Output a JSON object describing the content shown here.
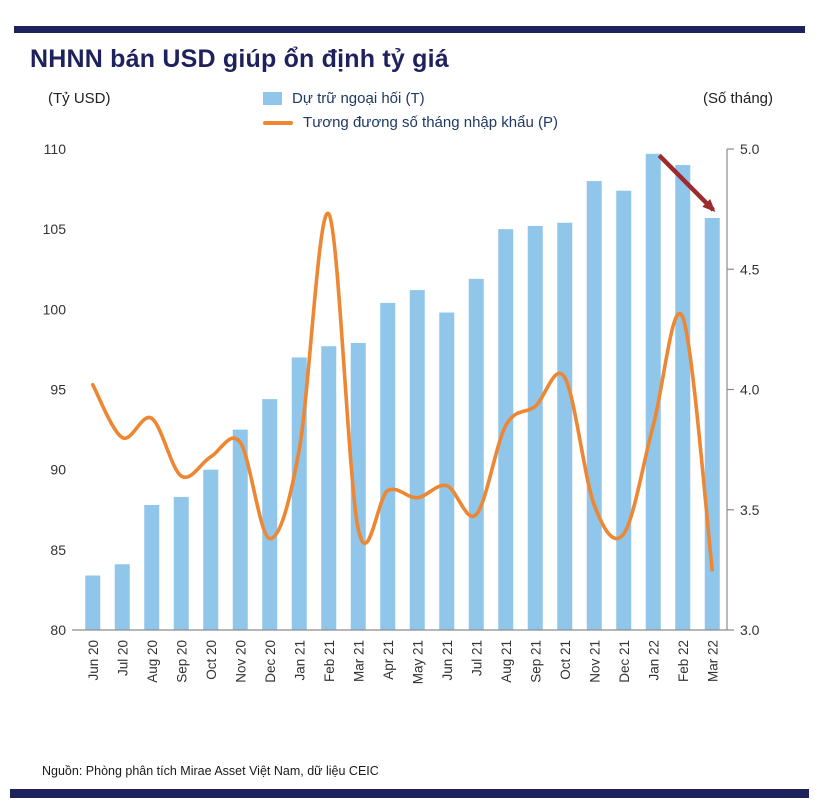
{
  "colors": {
    "navy": "#1f215c",
    "bar_blue": "#8fc6e9",
    "line_orange": "#ed8733",
    "arrow_red": "#9b2b2e",
    "axis_gray": "#8c8c8c",
    "tick_text": "#333333"
  },
  "page": {
    "title": "NHNN bán USD giúp ổn định tỷ giá",
    "source": "Nguồn: Phòng phân tích Mirae Asset Việt Nam, dữ liệu CEIC"
  },
  "chart_data": {
    "type": "bar",
    "subtype": "bar+line dual axis",
    "title": "NHNN bán USD giúp ổn định tỷ giá",
    "left_axis_label": "(Tỷ USD)",
    "right_axis_label": "(Số tháng)",
    "left_ylim": [
      80,
      110
    ],
    "left_yticks": [
      80,
      85,
      90,
      95,
      100,
      105,
      110
    ],
    "right_ylim": [
      3.0,
      5.0
    ],
    "right_yticks": [
      3.0,
      3.5,
      4.0,
      4.5,
      5.0
    ],
    "grid": false,
    "legend_position": "top",
    "categories": [
      "Jun 20",
      "Jul 20",
      "Aug 20",
      "Sep 20",
      "Oct 20",
      "Nov 20",
      "Dec 20",
      "Jan 21",
      "Feb 21",
      "Mar 21",
      "Apr 21",
      "May 21",
      "Jun 21",
      "Jul 21",
      "Aug 21",
      "Sep 21",
      "Oct 21",
      "Nov 21",
      "Dec 21",
      "Jan 22",
      "Feb 22",
      "Mar 22"
    ],
    "series": [
      {
        "name": "Dự trữ ngoại hối (T)",
        "type": "bar",
        "axis": "left",
        "color": "#8fc6e9",
        "values": [
          83.4,
          84.1,
          87.8,
          88.3,
          90.0,
          92.5,
          94.4,
          97.0,
          97.7,
          97.9,
          100.4,
          101.2,
          99.8,
          101.9,
          105.0,
          105.2,
          105.4,
          108.0,
          107.4,
          109.7,
          109.0,
          105.7
        ]
      },
      {
        "name": "Tương đương số tháng nhập khẩu (P)",
        "type": "line",
        "axis": "right",
        "color": "#ed8733",
        "values": [
          4.02,
          3.8,
          3.88,
          3.64,
          3.72,
          3.78,
          3.38,
          3.75,
          4.73,
          3.42,
          3.58,
          3.55,
          3.6,
          3.48,
          3.85,
          3.93,
          4.05,
          3.52,
          3.4,
          3.85,
          4.3,
          3.25
        ]
      }
    ],
    "annotation_arrow": {
      "description": "downward trend arrow over last bars",
      "color": "#9b2b2e",
      "axis": "left",
      "from": {
        "index": 19,
        "value": 109.6
      },
      "to": {
        "index": 21,
        "value": 106.2
      }
    }
  }
}
